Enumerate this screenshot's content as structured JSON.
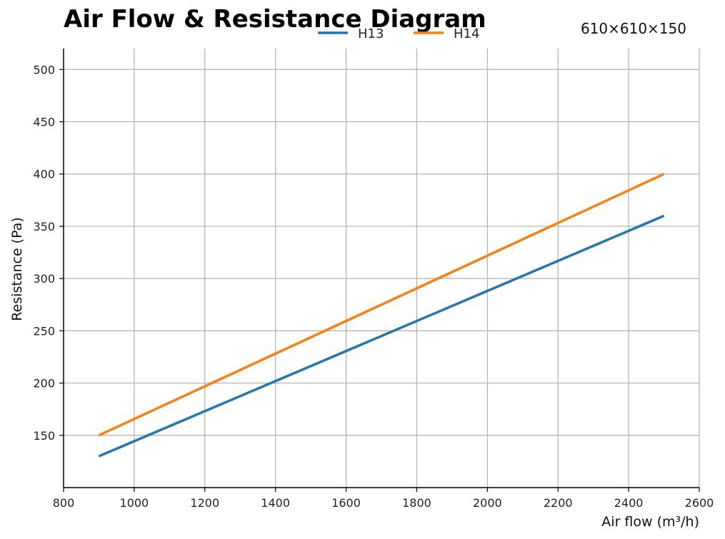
{
  "chart_data": {
    "type": "line",
    "title": "Air Flow & Resistance Diagram",
    "annotation": "610×610×150",
    "xlabel": "Air flow  (m³/h)",
    "ylabel": "Resistance  (Pa)",
    "xlim": [
      800,
      2600
    ],
    "ylim": [
      100,
      520
    ],
    "xticks": [
      800,
      1000,
      1200,
      1400,
      1600,
      1800,
      2000,
      2200,
      2400,
      2600
    ],
    "yticks": [
      150,
      200,
      250,
      300,
      350,
      400,
      450,
      500
    ],
    "grid": true,
    "legend_position": "top-center",
    "series": [
      {
        "name": "H13",
        "color": "#1f77b4",
        "x": [
          900,
          2500
        ],
        "y": [
          130,
          360
        ]
      },
      {
        "name": "H14",
        "color": "#ff7f0e",
        "x": [
          900,
          2500
        ],
        "y": [
          150,
          400
        ]
      }
    ]
  }
}
